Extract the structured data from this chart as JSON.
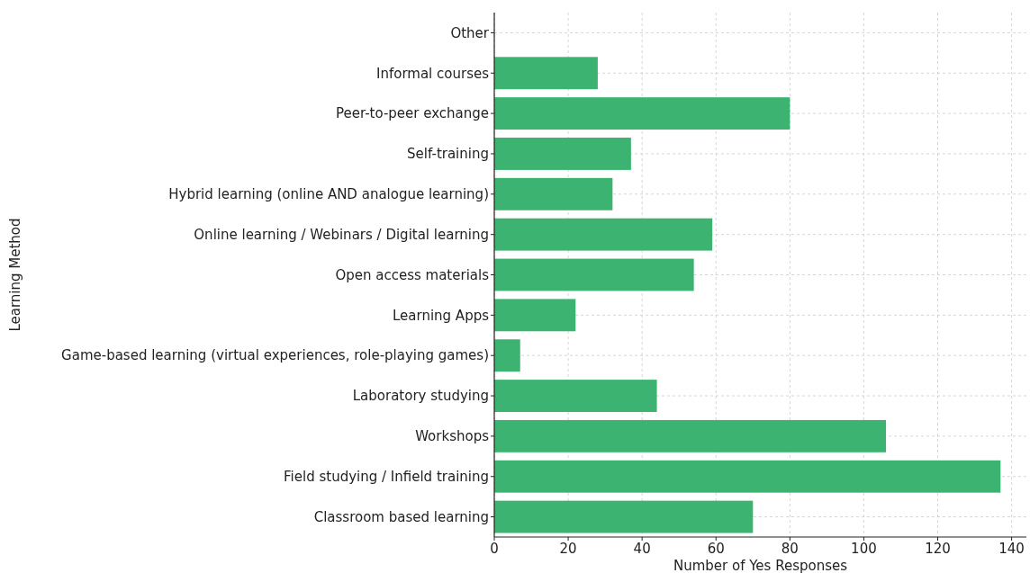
{
  "chart_data": {
    "type": "bar",
    "orientation": "horizontal",
    "xlabel": "Number of Yes Responses",
    "ylabel": "Learning Method",
    "categories": [
      "Other",
      "Informal courses",
      "Peer-to-peer exchange",
      "Self-training",
      "Hybrid learning (online AND analogue learning)",
      "Online learning / Webinars / Digital learning",
      "Open access materials",
      "Learning Apps",
      "Game-based learning (virtual experiences, role-playing games)",
      "Laboratory studying",
      "Workshops",
      "Field studying / Infield training",
      "Classroom based learning"
    ],
    "values": [
      0,
      28,
      80,
      37,
      32,
      59,
      54,
      22,
      7,
      44,
      106,
      137,
      70
    ],
    "color": "#3cb371",
    "xlim": [
      0,
      144
    ],
    "xticks": [
      0,
      20,
      40,
      60,
      80,
      100,
      120,
      140
    ],
    "grid": true
  }
}
